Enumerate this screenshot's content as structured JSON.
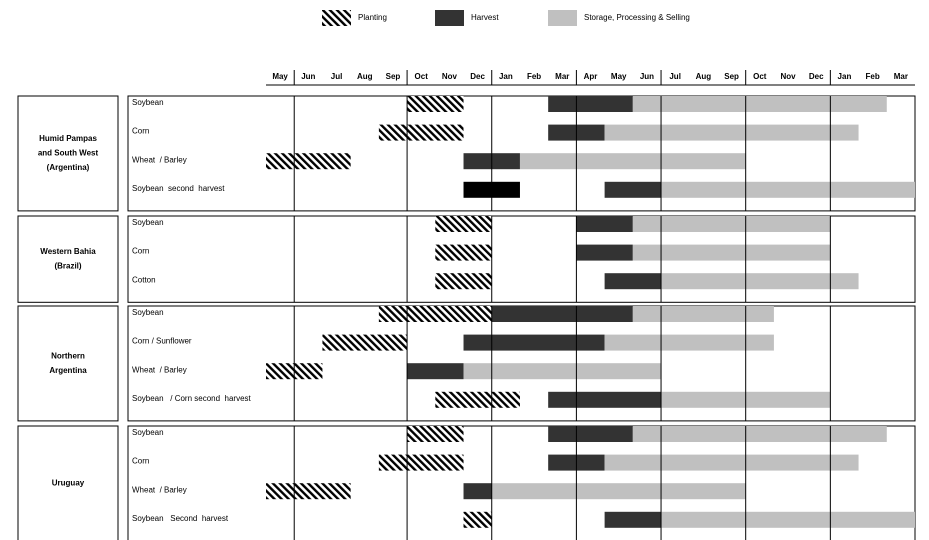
{
  "chart_data": {
    "type": "gantt",
    "phases": [
      {
        "name": "Planting",
        "pattern": "hatch",
        "color": "#000000"
      },
      {
        "name": "Harvest",
        "color": "#333333"
      },
      {
        "name": "Storage, Processing & Selling",
        "color": "#c0c0c0"
      }
    ],
    "categories": [
      "May",
      "Jun",
      "Jul",
      "Aug",
      "Sep",
      "Oct",
      "Nov",
      "Dec",
      "Jan",
      "Feb",
      "Mar",
      "Apr",
      "May",
      "Jun",
      "Jul",
      "Aug",
      "Sep",
      "Oct",
      "Nov",
      "Dec",
      "Jan",
      "Feb",
      "Mar"
    ],
    "dividers": [
      1,
      5,
      8,
      11,
      14,
      17,
      20
    ],
    "groups": [
      {
        "label": [
          "Humid Pampas",
          "and South West",
          "(Argentina)"
        ],
        "rows": [
          {
            "name": "Soybean",
            "segments": [
              {
                "phase": "Planting",
                "start": 5,
                "end": 7
              },
              {
                "phase": "Harvest",
                "start": 10,
                "end": 13
              },
              {
                "phase": "Storage, Processing & Selling",
                "start": 13,
                "end": 22
              }
            ]
          },
          {
            "name": "Corn",
            "segments": [
              {
                "phase": "Planting",
                "start": 4,
                "end": 7
              },
              {
                "phase": "Harvest",
                "start": 10,
                "end": 12
              },
              {
                "phase": "Storage, Processing & Selling",
                "start": 12,
                "end": 21
              }
            ]
          },
          {
            "name": "Wheat  / Barley",
            "segments": [
              {
                "phase": "Planting",
                "start": 0,
                "end": 3
              },
              {
                "phase": "Harvest",
                "start": 7,
                "end": 9
              },
              {
                "phase": "Storage, Processing & Selling",
                "start": 9,
                "end": 17
              }
            ]
          },
          {
            "name": "Soybean  second  harvest",
            "segments": [
              {
                "phase": "Planting",
                "start": 7,
                "end": 9,
                "color": "#000000"
              },
              {
                "phase": "Harvest",
                "start": 12,
                "end": 14
              },
              {
                "phase": "Storage, Processing & Selling",
                "start": 14,
                "end": 23
              }
            ]
          }
        ]
      },
      {
        "label": [
          "Western Bahia",
          "(Brazil)"
        ],
        "rows": [
          {
            "name": "Soybean",
            "segments": [
              {
                "phase": "Planting",
                "start": 6,
                "end": 8
              },
              {
                "phase": "Harvest",
                "start": 11,
                "end": 13
              },
              {
                "phase": "Storage, Processing & Selling",
                "start": 13,
                "end": 20
              }
            ]
          },
          {
            "name": "Corn",
            "segments": [
              {
                "phase": "Planting",
                "start": 6,
                "end": 8
              },
              {
                "phase": "Harvest",
                "start": 11,
                "end": 13
              },
              {
                "phase": "Storage, Processing & Selling",
                "start": 13,
                "end": 20
              }
            ]
          },
          {
            "name": "Cotton",
            "segments": [
              {
                "phase": "Planting",
                "start": 6,
                "end": 8
              },
              {
                "phase": "Harvest",
                "start": 12,
                "end": 14
              },
              {
                "phase": "Storage, Processing & Selling",
                "start": 14,
                "end": 21
              }
            ]
          }
        ]
      },
      {
        "label": [
          "Northern",
          "Argentina"
        ],
        "rows": [
          {
            "name": "Soybean",
            "segments": [
              {
                "phase": "Planting",
                "start": 4,
                "end": 8
              },
              {
                "phase": "Harvest",
                "start": 8,
                "end": 13
              },
              {
                "phase": "Storage, Processing & Selling",
                "start": 13,
                "end": 18
              }
            ]
          },
          {
            "name": "Corn / Sunflower",
            "segments": [
              {
                "phase": "Planting",
                "start": 2,
                "end": 5
              },
              {
                "phase": "Harvest",
                "start": 7,
                "end": 12
              },
              {
                "phase": "Storage, Processing & Selling",
                "start": 12,
                "end": 18
              }
            ]
          },
          {
            "name": "Wheat  / Barley",
            "segments": [
              {
                "phase": "Planting",
                "start": 0,
                "end": 2
              },
              {
                "phase": "Harvest",
                "start": 5,
                "end": 7
              },
              {
                "phase": "Storage, Processing & Selling",
                "start": 7,
                "end": 14
              }
            ]
          },
          {
            "name": "Soybean   / Corn second  harvest",
            "segments": [
              {
                "phase": "Planting",
                "start": 6,
                "end": 9
              },
              {
                "phase": "Harvest",
                "start": 10,
                "end": 14
              },
              {
                "phase": "Storage, Processing & Selling",
                "start": 14,
                "end": 20
              }
            ]
          }
        ]
      },
      {
        "label": [
          "Uruguay"
        ],
        "rows": [
          {
            "name": "Soybean",
            "segments": [
              {
                "phase": "Planting",
                "start": 5,
                "end": 7
              },
              {
                "phase": "Harvest",
                "start": 10,
                "end": 13
              },
              {
                "phase": "Storage, Processing & Selling",
                "start": 13,
                "end": 22
              }
            ]
          },
          {
            "name": "Corn",
            "segments": [
              {
                "phase": "Planting",
                "start": 4,
                "end": 7
              },
              {
                "phase": "Harvest",
                "start": 10,
                "end": 12
              },
              {
                "phase": "Storage, Processing & Selling",
                "start": 12,
                "end": 21
              }
            ]
          },
          {
            "name": "Wheat  / Barley",
            "segments": [
              {
                "phase": "Planting",
                "start": 0,
                "end": 3
              },
              {
                "phase": "Harvest",
                "start": 7,
                "end": 8
              },
              {
                "phase": "Storage, Processing & Selling",
                "start": 8,
                "end": 17
              }
            ]
          },
          {
            "name": "Soybean   Second  harvest",
            "segments": [
              {
                "phase": "Planting",
                "start": 7,
                "end": 8
              },
              {
                "phase": "Harvest",
                "start": 12,
                "end": 14
              },
              {
                "phase": "Storage, Processing & Selling",
                "start": 14,
                "end": 23
              }
            ]
          }
        ]
      }
    ]
  }
}
